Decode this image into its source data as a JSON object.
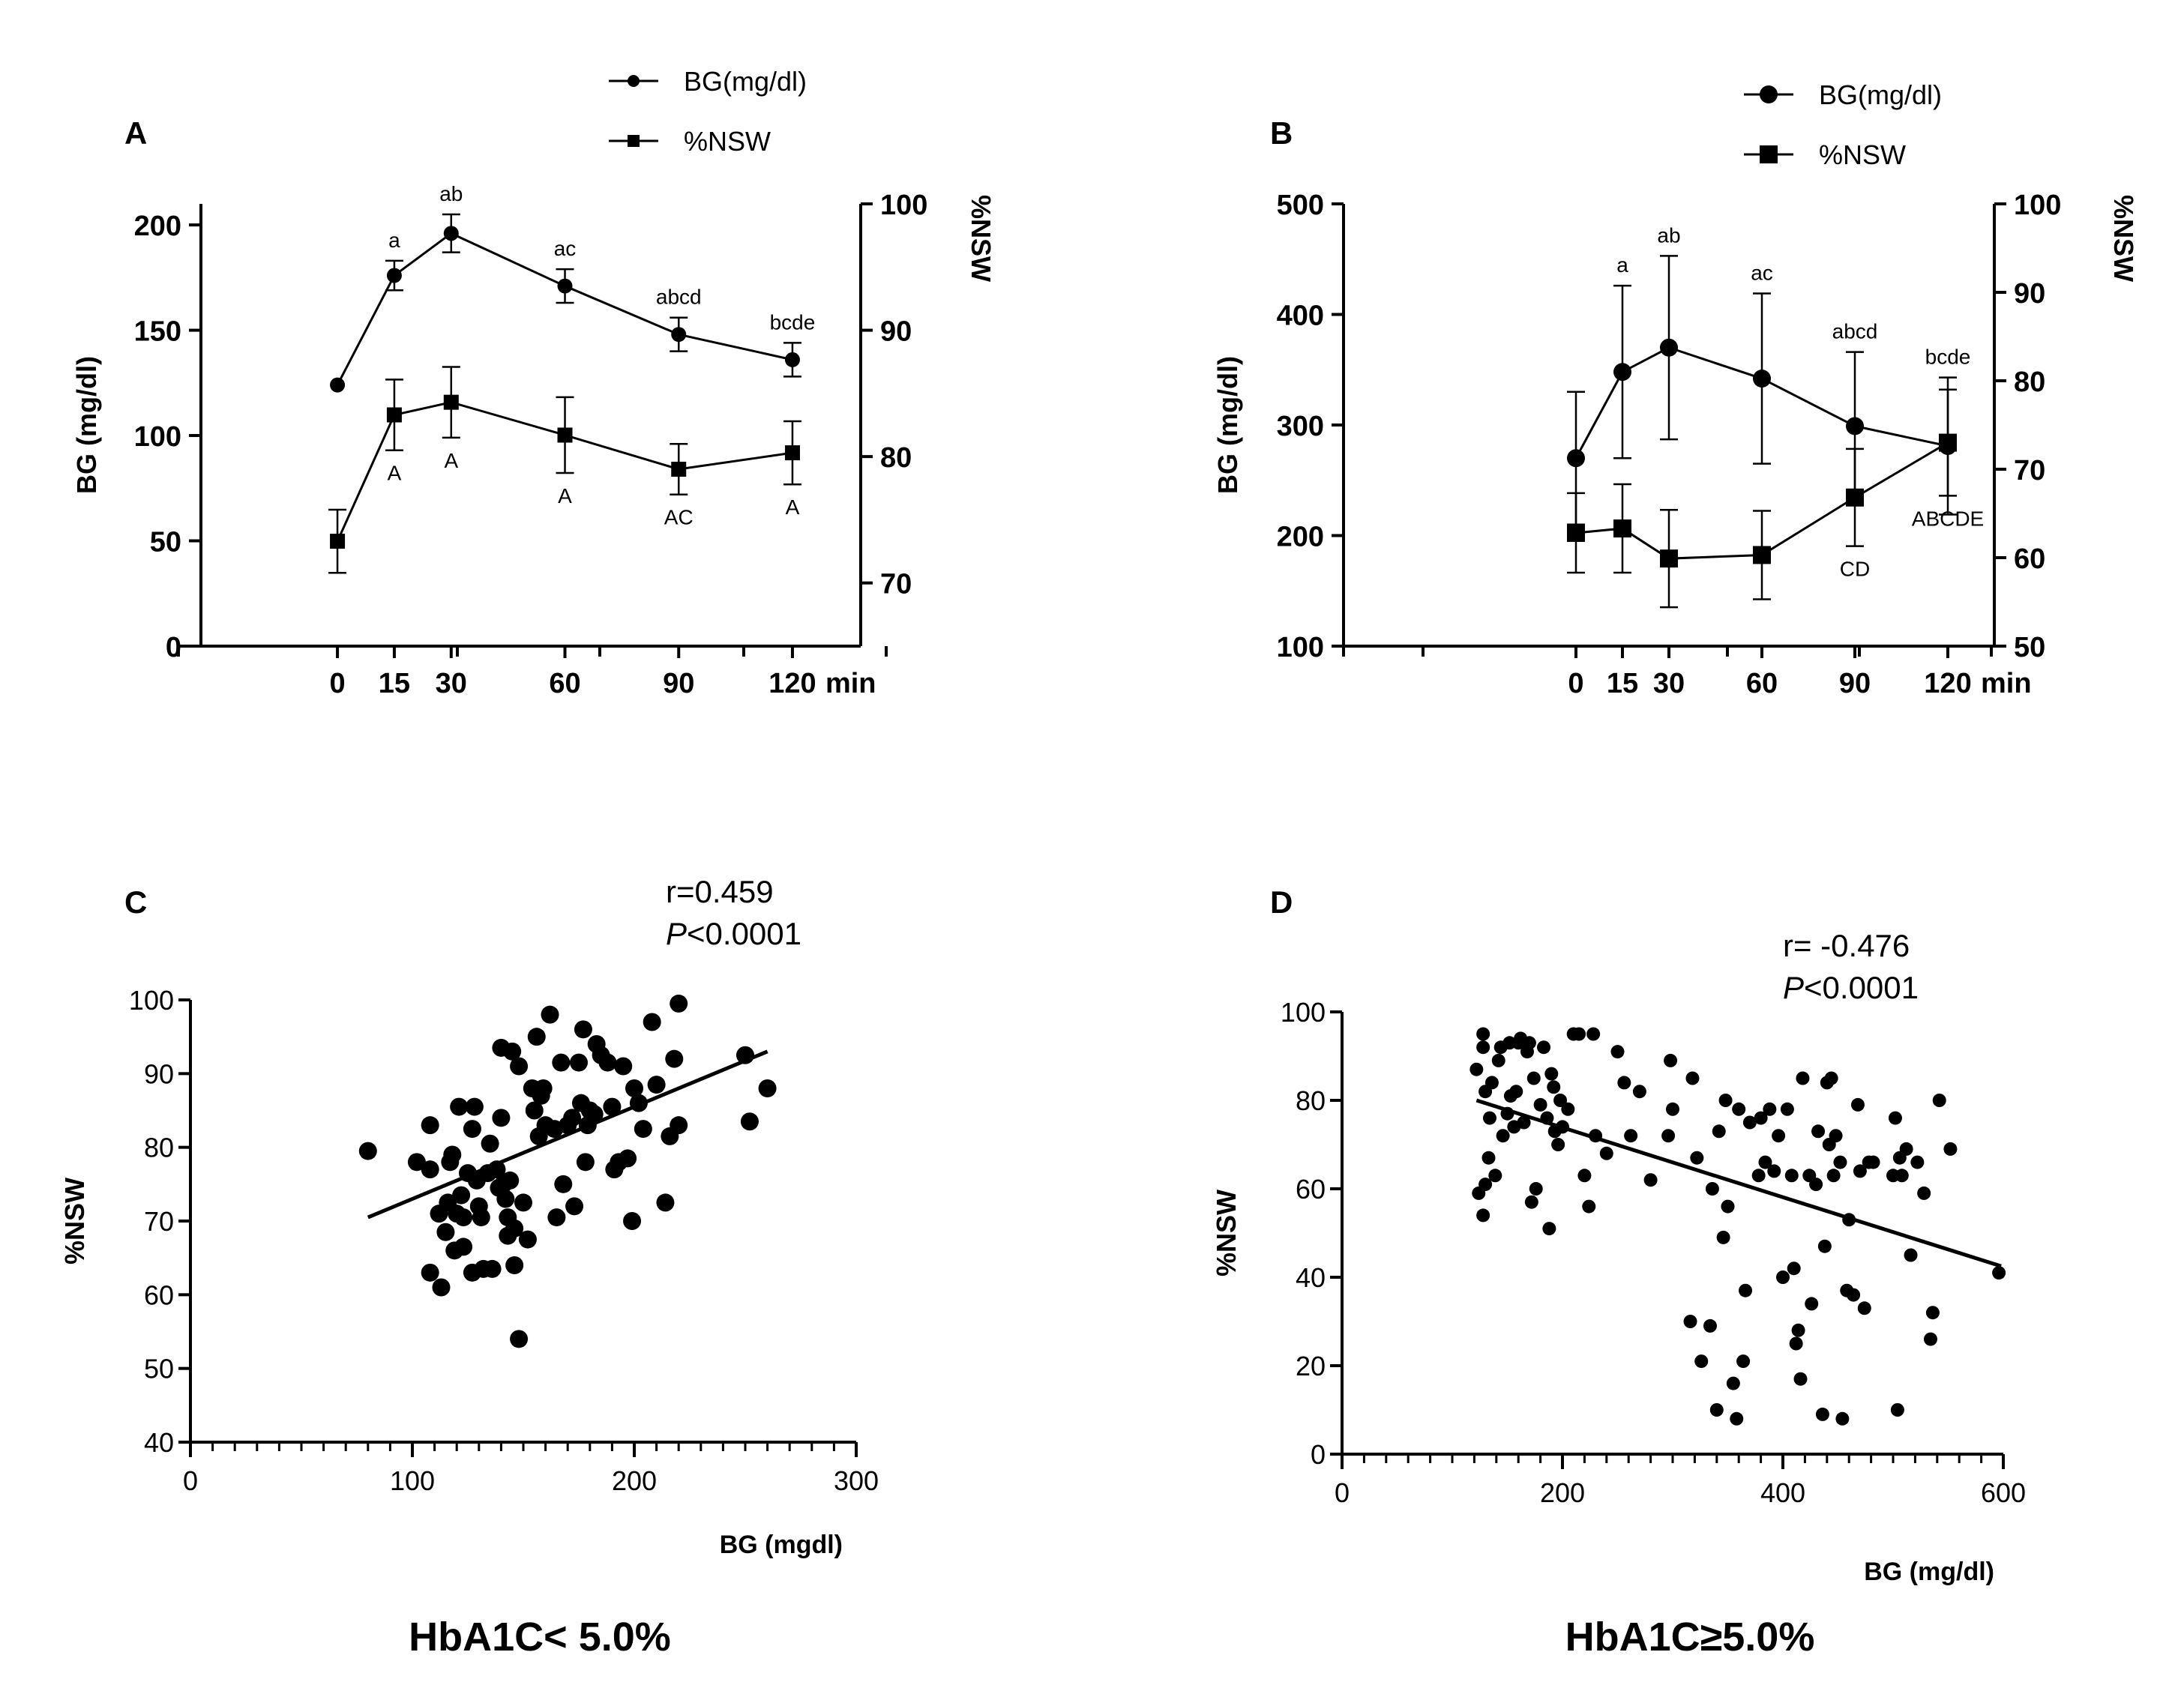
{
  "figure": {
    "panel_labels": [
      "A",
      "B",
      "C",
      "D"
    ],
    "colors": {
      "ink": "#000000",
      "background": "#ffffff"
    }
  },
  "chart_data": [
    {
      "panel": "A",
      "type": "line",
      "legend": [
        "BG(mg/dl)",
        "%NSW"
      ],
      "legend_position": "top-center",
      "x": [
        0,
        15,
        30,
        60,
        90,
        120
      ],
      "xticks": [
        "0",
        "15",
        "30",
        "60",
        "90",
        "120"
      ],
      "xunit": "min",
      "ylabel": "BG (mg/dl)",
      "ylim": [
        0,
        210
      ],
      "yticks": [
        0,
        50,
        100,
        150,
        200
      ],
      "y2label": "%NSW",
      "y2lim": [
        65,
        100
      ],
      "y2ticks": [
        70,
        80,
        90,
        100
      ],
      "series": [
        {
          "name": "BG(mg/dl)",
          "axis": "left",
          "marker": "circle",
          "values": [
            124,
            176,
            196,
            171,
            148,
            136
          ],
          "errors": [
            0,
            7,
            9,
            8,
            8,
            8
          ],
          "annotations": [
            "",
            "a",
            "ab",
            "ac",
            "abcd",
            "bcde"
          ]
        },
        {
          "name": "%NSW",
          "axis": "right",
          "marker": "square",
          "values": [
            73.3,
            83.3,
            84.3,
            81.7,
            79.0,
            80.3
          ],
          "errors": [
            2.5,
            2.8,
            2.8,
            3.0,
            2.0,
            2.5
          ],
          "annotations": [
            "",
            "A",
            "A",
            "A",
            "AC",
            "A"
          ]
        }
      ]
    },
    {
      "panel": "B",
      "type": "line",
      "legend": [
        "BG(mg/dl)",
        "%NSW"
      ],
      "legend_position": "top-right",
      "x": [
        0,
        15,
        30,
        60,
        90,
        120
      ],
      "xticks": [
        "0",
        "15",
        "30",
        "60",
        "90",
        "120"
      ],
      "xunit": "min",
      "ylabel": "BG (mg/dl)",
      "ylim": [
        100,
        500
      ],
      "yticks": [
        100,
        200,
        300,
        400,
        500
      ],
      "y2label": "%NSW",
      "y2lim": [
        50,
        100
      ],
      "y2ticks": [
        50,
        60,
        70,
        80,
        90,
        100
      ],
      "series": [
        {
          "name": "BG(mg/dl)",
          "axis": "left",
          "marker": "circle",
          "values": [
            270,
            348,
            370,
            342,
            299,
            281
          ],
          "errors": [
            60,
            78,
            83,
            77,
            67,
            62
          ],
          "annotations": [
            "",
            "a",
            "ab",
            "ac",
            "abcd",
            "bcde"
          ]
        },
        {
          "name": "%NSW",
          "axis": "right",
          "marker": "square",
          "values": [
            62.8,
            63.3,
            59.9,
            60.3,
            66.8,
            73.0
          ],
          "errors": [
            4.5,
            5.0,
            5.5,
            5.0,
            5.5,
            6.0
          ],
          "annotations": [
            "",
            "",
            "",
            "",
            "CD",
            "ABCDE"
          ]
        }
      ]
    },
    {
      "panel": "C",
      "type": "scatter",
      "xlabel": "BG (mgdl)",
      "ylabel": "%NSW",
      "xlim": [
        0,
        300
      ],
      "xticks": [
        0,
        100,
        200,
        300
      ],
      "ylim": [
        40,
        100
      ],
      "yticks": [
        40,
        50,
        60,
        70,
        80,
        90,
        100
      ],
      "stat_r": "r=0.459",
      "stat_p_italic": "P",
      "stat_p_rest": "<0.0001",
      "caption": "HbA1C< 5.0%",
      "fit_line": {
        "x": [
          80,
          260
        ],
        "y": [
          70.5,
          93.0
        ]
      },
      "points": [
        [
          80,
          79.5
        ],
        [
          102,
          78
        ],
        [
          108,
          83
        ],
        [
          108,
          63
        ],
        [
          108,
          77
        ],
        [
          112,
          71
        ],
        [
          113,
          61
        ],
        [
          115,
          68.5
        ],
        [
          116,
          72.5
        ],
        [
          117,
          78
        ],
        [
          118,
          79
        ],
        [
          119,
          66
        ],
        [
          120,
          71
        ],
        [
          121,
          85.5
        ],
        [
          122,
          73.5
        ],
        [
          123,
          70.5
        ],
        [
          123,
          66.5
        ],
        [
          125,
          76.5
        ],
        [
          127,
          63
        ],
        [
          127,
          82.5
        ],
        [
          128,
          85.5
        ],
        [
          129,
          75.5
        ],
        [
          130,
          72
        ],
        [
          131,
          70.5
        ],
        [
          132,
          63.5
        ],
        [
          134,
          76.5
        ],
        [
          135,
          80.5
        ],
        [
          136,
          63.5
        ],
        [
          138,
          77
        ],
        [
          139,
          74.5
        ],
        [
          140,
          93.5
        ],
        [
          140,
          84
        ],
        [
          141,
          75
        ],
        [
          142,
          73
        ],
        [
          143,
          68
        ],
        [
          143,
          70.5
        ],
        [
          144,
          75.5
        ],
        [
          145,
          93
        ],
        [
          146,
          64
        ],
        [
          146,
          69
        ],
        [
          148,
          91
        ],
        [
          148,
          54
        ],
        [
          150,
          72.5
        ],
        [
          152,
          67.5
        ],
        [
          154,
          88
        ],
        [
          155,
          85
        ],
        [
          156,
          95
        ],
        [
          157,
          81.5
        ],
        [
          158,
          87
        ],
        [
          159,
          88
        ],
        [
          160,
          83
        ],
        [
          162,
          98
        ],
        [
          164,
          82.5
        ],
        [
          165,
          70.5
        ],
        [
          167,
          91.5
        ],
        [
          168,
          75
        ],
        [
          170,
          83
        ],
        [
          172,
          84
        ],
        [
          173,
          72
        ],
        [
          175,
          91.5
        ],
        [
          176,
          86
        ],
        [
          177,
          96
        ],
        [
          178,
          78
        ],
        [
          179,
          83
        ],
        [
          180,
          85
        ],
        [
          182,
          84.5
        ],
        [
          183,
          94
        ],
        [
          185,
          92.5
        ],
        [
          188,
          91.5
        ],
        [
          190,
          85.5
        ],
        [
          191,
          77
        ],
        [
          193,
          78
        ],
        [
          195,
          91
        ],
        [
          197,
          78.5
        ],
        [
          199,
          70
        ],
        [
          200,
          88
        ],
        [
          202,
          86
        ],
        [
          204,
          82.5
        ],
        [
          208,
          97
        ],
        [
          210,
          88.5
        ],
        [
          214,
          72.5
        ],
        [
          216,
          81.5
        ],
        [
          218,
          92
        ],
        [
          220,
          99.5
        ],
        [
          220,
          83
        ],
        [
          250,
          92.5
        ],
        [
          252,
          83.5
        ],
        [
          260,
          88
        ]
      ]
    },
    {
      "panel": "D",
      "type": "scatter",
      "xlabel": "BG (mg/dl)",
      "ylabel": "%NSW",
      "xlim": [
        0,
        600
      ],
      "xticks": [
        0,
        200,
        400,
        600
      ],
      "ylim": [
        0,
        100
      ],
      "yticks": [
        0,
        20,
        40,
        60,
        80,
        100
      ],
      "stat_r": "r= -0.476",
      "stat_p_italic": "P",
      "stat_p_rest": "<0.0001",
      "caption": "HbA1C≥5.0%",
      "fit_line": {
        "x": [
          122,
          598
        ],
        "y": [
          80.0,
          42.5
        ]
      },
      "points": [
        [
          122,
          87
        ],
        [
          124,
          59
        ],
        [
          128,
          95
        ],
        [
          128,
          92
        ],
        [
          128,
          54
        ],
        [
          130,
          82
        ],
        [
          130,
          61
        ],
        [
          133,
          67
        ],
        [
          134,
          76
        ],
        [
          136,
          84
        ],
        [
          139,
          63
        ],
        [
          142,
          89
        ],
        [
          144,
          92
        ],
        [
          146,
          72
        ],
        [
          150,
          77
        ],
        [
          152,
          93
        ],
        [
          153,
          81
        ],
        [
          156,
          74
        ],
        [
          158,
          82
        ],
        [
          160,
          93
        ],
        [
          162,
          94
        ],
        [
          165,
          75
        ],
        [
          168,
          91
        ],
        [
          170,
          93
        ],
        [
          172,
          57
        ],
        [
          174,
          85
        ],
        [
          176,
          60
        ],
        [
          180,
          79
        ],
        [
          183,
          92
        ],
        [
          186,
          76
        ],
        [
          188,
          51
        ],
        [
          190,
          86
        ],
        [
          192,
          83
        ],
        [
          193,
          73
        ],
        [
          196,
          70
        ],
        [
          198,
          80
        ],
        [
          200,
          74
        ],
        [
          205,
          78
        ],
        [
          210,
          95
        ],
        [
          215,
          95
        ],
        [
          220,
          63
        ],
        [
          224,
          56
        ],
        [
          228,
          95
        ],
        [
          230,
          72
        ],
        [
          240,
          68
        ],
        [
          250,
          91
        ],
        [
          256,
          84
        ],
        [
          262,
          72
        ],
        [
          270,
          82
        ],
        [
          280,
          62
        ],
        [
          296,
          72
        ],
        [
          298,
          89
        ],
        [
          300,
          78
        ],
        [
          316,
          30
        ],
        [
          318,
          85
        ],
        [
          322,
          67
        ],
        [
          326,
          21
        ],
        [
          334,
          29
        ],
        [
          336,
          60
        ],
        [
          340,
          10
        ],
        [
          342,
          73
        ],
        [
          346,
          49
        ],
        [
          348,
          80
        ],
        [
          350,
          56
        ],
        [
          355,
          16
        ],
        [
          358,
          8
        ],
        [
          360,
          78
        ],
        [
          364,
          21
        ],
        [
          366,
          37
        ],
        [
          370,
          75
        ],
        [
          378,
          63
        ],
        [
          380,
          76
        ],
        [
          384,
          66
        ],
        [
          388,
          78
        ],
        [
          392,
          64
        ],
        [
          396,
          72
        ],
        [
          400,
          40
        ],
        [
          404,
          78
        ],
        [
          408,
          63
        ],
        [
          410,
          42
        ],
        [
          412,
          25
        ],
        [
          414,
          28
        ],
        [
          416,
          17
        ],
        [
          418,
          85
        ],
        [
          424,
          63
        ],
        [
          426,
          34
        ],
        [
          430,
          61
        ],
        [
          432,
          73
        ],
        [
          436,
          9
        ],
        [
          438,
          47
        ],
        [
          440,
          84
        ],
        [
          442,
          70
        ],
        [
          444,
          85
        ],
        [
          446,
          63
        ],
        [
          448,
          72
        ],
        [
          452,
          66
        ],
        [
          454,
          8
        ],
        [
          458,
          37
        ],
        [
          460,
          53
        ],
        [
          464,
          36
        ],
        [
          468,
          79
        ],
        [
          470,
          64
        ],
        [
          474,
          33
        ],
        [
          478,
          66
        ],
        [
          482,
          66
        ],
        [
          500,
          63
        ],
        [
          502,
          76
        ],
        [
          504,
          10
        ],
        [
          506,
          67
        ],
        [
          508,
          63
        ],
        [
          512,
          69
        ],
        [
          516,
          45
        ],
        [
          522,
          66
        ],
        [
          528,
          59
        ],
        [
          534,
          26
        ],
        [
          536,
          32
        ],
        [
          542,
          80
        ],
        [
          552,
          69
        ],
        [
          596,
          41
        ]
      ]
    }
  ]
}
